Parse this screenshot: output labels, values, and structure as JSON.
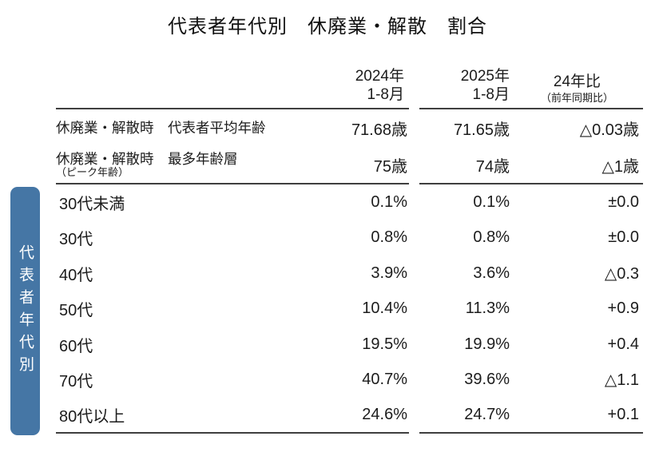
{
  "title": "代表者年代別　休廃業・解散　割合",
  "sidebar": {
    "label": "代表者年代別",
    "color": "#4576a5"
  },
  "table": {
    "headers": {
      "col2024_line1": "2024年",
      "col2024_line2": "1-8月",
      "col2025_line1": "2025年",
      "col2025_line2": "1-8月",
      "coldiff_line1": "24年比",
      "coldiff_line2": "（前年同期比）"
    },
    "summary_rows": [
      {
        "label": "休廃業・解散時　代表者平均年齢",
        "sublabel": "",
        "v2024": "71.68歳",
        "v2025": "71.65歳",
        "diff": "△0.03歳"
      },
      {
        "label": "休廃業・解散時　最多年齢層",
        "sublabel": "（ピーク年齢）",
        "v2024": "75歳",
        "v2025": "74歳",
        "diff": "△1歳"
      }
    ],
    "age_rows": [
      {
        "label": "30代未満",
        "v2024": "0.1%",
        "v2025": "0.1%",
        "diff": "±0.0"
      },
      {
        "label": "30代",
        "v2024": "0.8%",
        "v2025": "0.8%",
        "diff": "±0.0"
      },
      {
        "label": "40代",
        "v2024": "3.9%",
        "v2025": "3.6%",
        "diff": "△0.3"
      },
      {
        "label": "50代",
        "v2024": "10.4%",
        "v2025": "11.3%",
        "diff": "+0.9"
      },
      {
        "label": "60代",
        "v2024": "19.5%",
        "v2025": "19.9%",
        "diff": "+0.4"
      },
      {
        "label": "70代",
        "v2024": "40.7%",
        "v2025": "39.6%",
        "diff": "△1.1"
      },
      {
        "label": "80代以上",
        "v2024": "24.6%",
        "v2025": "24.7%",
        "diff": "+0.1"
      }
    ]
  },
  "chart_data": {
    "type": "table",
    "title": "代表者年代別　休廃業・解散　割合",
    "row_group_label": "代表者年代別",
    "columns": [
      "",
      "2024年 1-8月",
      "2025年 1-8月",
      "24年比（前年同期比）"
    ],
    "rows": [
      [
        "休廃業・解散時 代表者平均年齢",
        "71.68歳",
        "71.65歳",
        "△0.03歳"
      ],
      [
        "休廃業・解散時 最多年齢層（ピーク年齢）",
        "75歳",
        "74歳",
        "△1歳"
      ],
      [
        "30代未満",
        "0.1%",
        "0.1%",
        "±0.0"
      ],
      [
        "30代",
        "0.8%",
        "0.8%",
        "±0.0"
      ],
      [
        "40代",
        "3.9%",
        "3.6%",
        "△0.3"
      ],
      [
        "50代",
        "10.4%",
        "11.3%",
        "+0.9"
      ],
      [
        "60代",
        "19.5%",
        "19.9%",
        "+0.4"
      ],
      [
        "70代",
        "40.7%",
        "39.6%",
        "△1.1"
      ],
      [
        "80代以上",
        "24.6%",
        "24.7%",
        "+0.1"
      ]
    ]
  }
}
